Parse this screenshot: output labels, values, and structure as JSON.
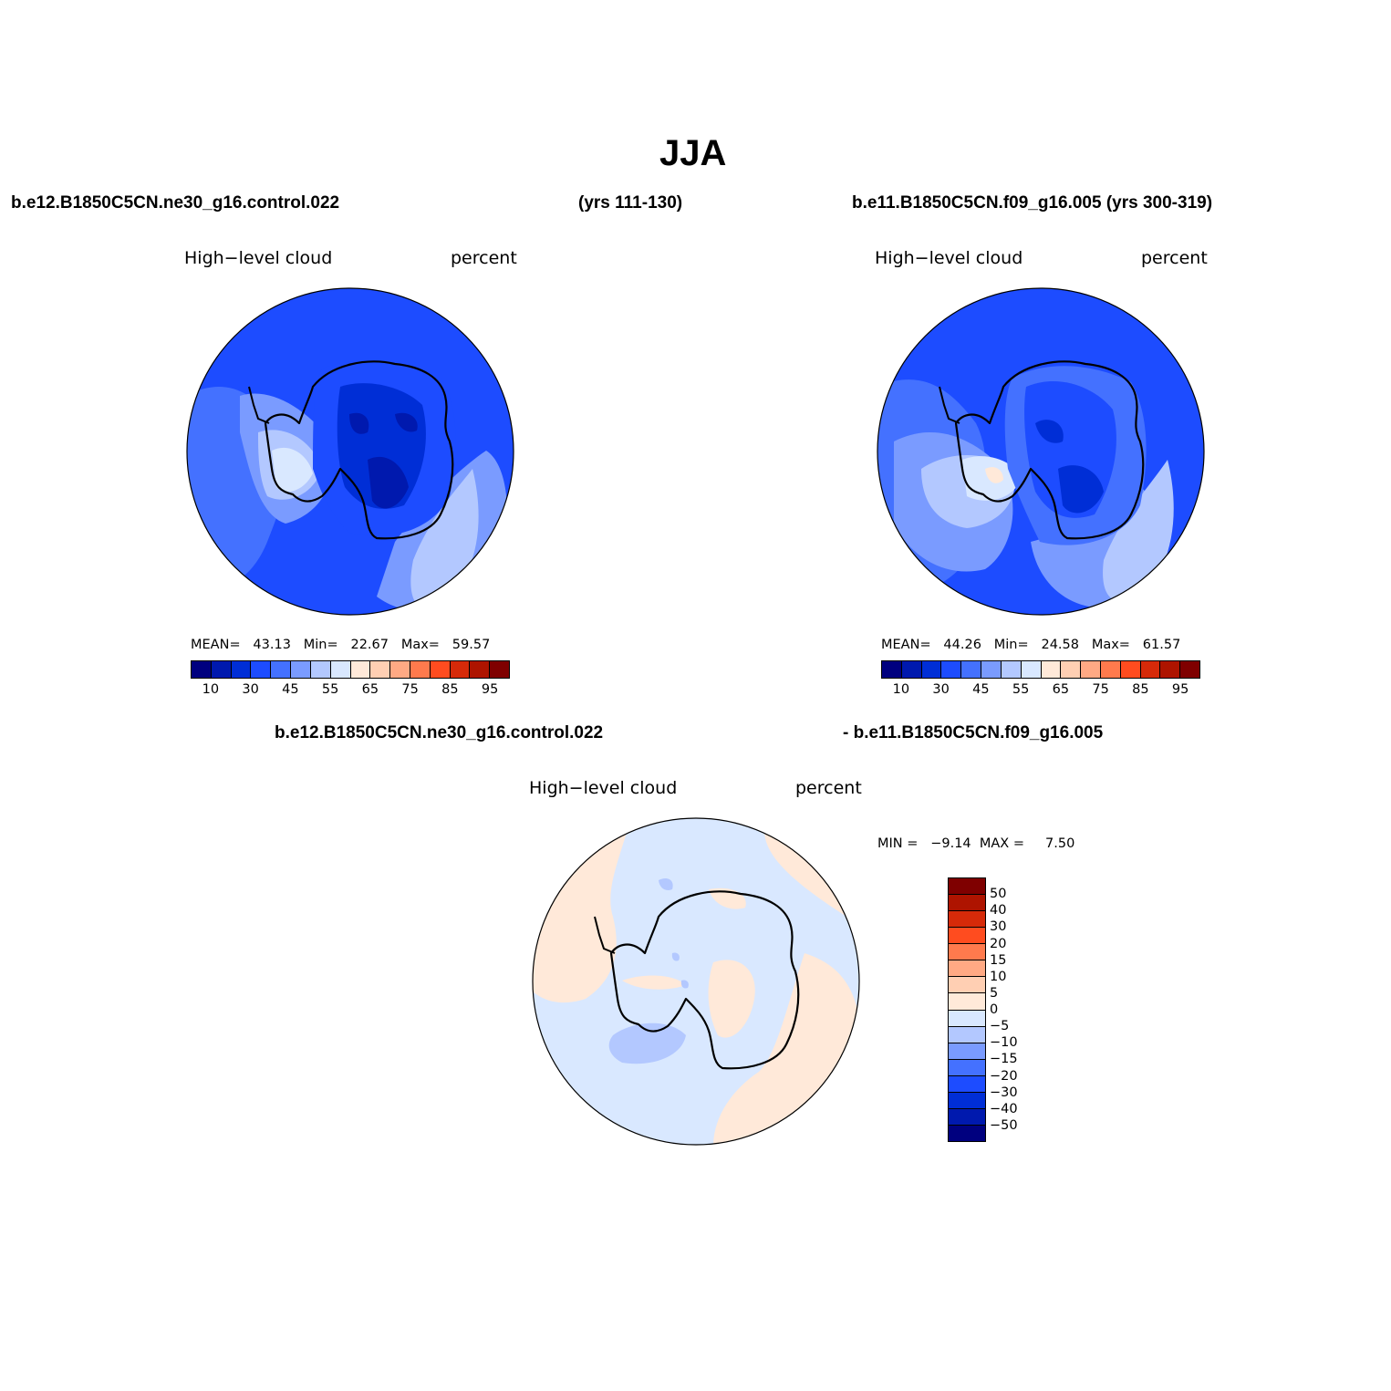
{
  "title": "JJA",
  "header": {
    "case_a": "b.e12.B1850C5CN.ne30_g16.control.022",
    "years_a": "(yrs 111-130)",
    "case_b_with_years": "b.e11.B1850C5CN.f09_g16.005 (yrs 300-319)",
    "diff_case_a": "b.e12.B1850C5CN.ne30_g16.control.022",
    "diff_case_b": "- b.e11.B1850C5CN.f09_g16.005"
  },
  "panels": [
    {
      "variable": "High−level cloud",
      "units": "percent",
      "stats": {
        "mean_label": "MEAN=",
        "mean": "43.13",
        "min_label": "Min=",
        "min": "22.67",
        "max_label": "Max=",
        "max": "59.57"
      }
    },
    {
      "variable": "High−level cloud",
      "units": "percent",
      "stats": {
        "mean_label": "MEAN=",
        "mean": "44.26",
        "min_label": "Min=",
        "min": "24.58",
        "max_label": "Max=",
        "max": "61.57"
      }
    },
    {
      "variable": "High−level cloud",
      "units": "percent",
      "stats_line": "MIN =   −9.14  MAX =     7.50"
    }
  ],
  "abs_colorbar": {
    "colors": [
      "#00007f",
      "#0019ae",
      "#002ed6",
      "#1d4cff",
      "#4471ff",
      "#7a9bff",
      "#b3c8ff",
      "#d9e8ff",
      "#ffe9d9",
      "#ffcfb3",
      "#ffa984",
      "#ff7a4d",
      "#ff4c1f",
      "#d62a09",
      "#ae1400",
      "#7f0000"
    ],
    "tick_labels": [
      "10",
      "30",
      "45",
      "55",
      "65",
      "75",
      "85",
      "95"
    ]
  },
  "diff_colorbar": {
    "colors": [
      "#00007f",
      "#0019ae",
      "#002ed6",
      "#1d4cff",
      "#4471ff",
      "#7a9bff",
      "#b3c8ff",
      "#d9e8ff",
      "#ffe9d9",
      "#ffcfb3",
      "#ffa984",
      "#ff7a4d",
      "#ff4c1f",
      "#d62a09",
      "#ae1400",
      "#7f0000"
    ],
    "tick_labels": [
      "−50",
      "−40",
      "−30",
      "−20",
      "−15",
      "−10",
      "−5",
      "0",
      "5",
      "10",
      "15",
      "20",
      "30",
      "40",
      "50"
    ]
  }
}
